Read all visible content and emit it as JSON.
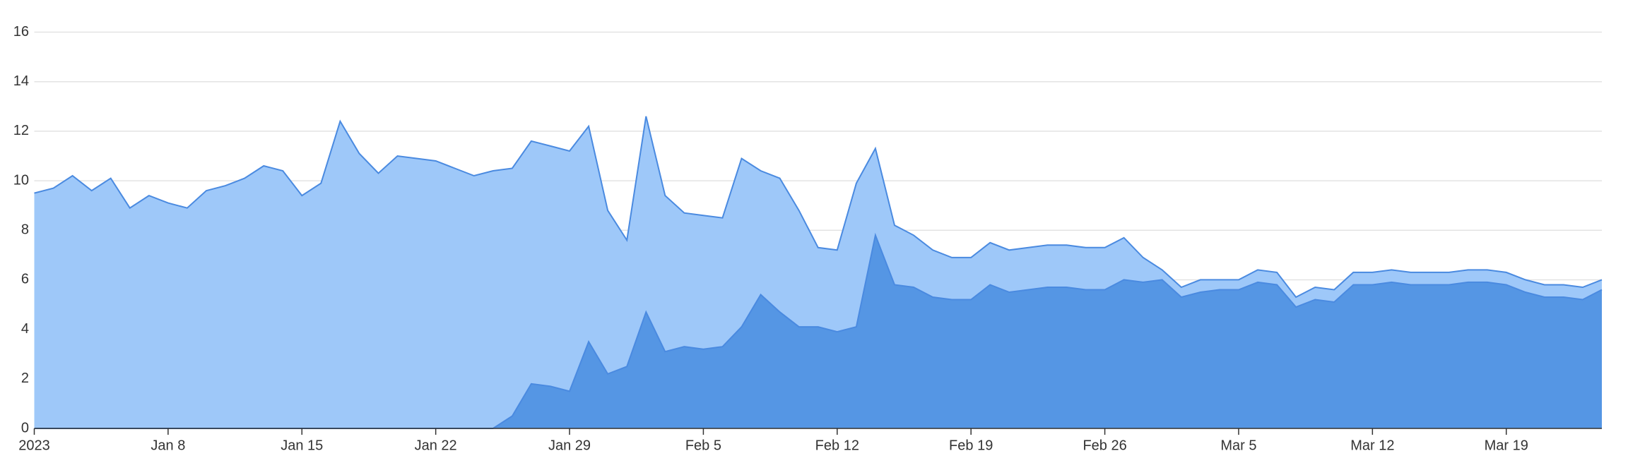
{
  "chart_data": {
    "type": "area",
    "x": [
      "2023-01-01",
      "2023-01-02",
      "2023-01-03",
      "2023-01-04",
      "2023-01-05",
      "2023-01-06",
      "2023-01-07",
      "2023-01-08",
      "2023-01-09",
      "2023-01-10",
      "2023-01-11",
      "2023-01-12",
      "2023-01-13",
      "2023-01-14",
      "2023-01-15",
      "2023-01-16",
      "2023-01-17",
      "2023-01-18",
      "2023-01-19",
      "2023-01-20",
      "2023-01-21",
      "2023-01-22",
      "2023-01-23",
      "2023-01-24",
      "2023-01-25",
      "2023-01-26",
      "2023-01-27",
      "2023-01-28",
      "2023-01-29",
      "2023-01-30",
      "2023-01-31",
      "2023-02-01",
      "2023-02-02",
      "2023-02-03",
      "2023-02-04",
      "2023-02-05",
      "2023-02-06",
      "2023-02-07",
      "2023-02-08",
      "2023-02-09",
      "2023-02-10",
      "2023-02-11",
      "2023-02-12",
      "2023-02-13",
      "2023-02-14",
      "2023-02-15",
      "2023-02-16",
      "2023-02-17",
      "2023-02-18",
      "2023-02-19",
      "2023-02-20",
      "2023-02-21",
      "2023-02-22",
      "2023-02-23",
      "2023-02-24",
      "2023-02-25",
      "2023-02-26",
      "2023-02-27",
      "2023-02-28",
      "2023-03-01",
      "2023-03-02",
      "2023-03-03",
      "2023-03-04",
      "2023-03-05",
      "2023-03-06",
      "2023-03-07",
      "2023-03-08",
      "2023-03-09",
      "2023-03-10",
      "2023-03-11",
      "2023-03-12",
      "2023-03-13",
      "2023-03-14",
      "2023-03-15",
      "2023-03-16",
      "2023-03-17",
      "2023-03-18",
      "2023-03-19",
      "2023-03-20",
      "2023-03-21",
      "2023-03-22",
      "2023-03-23",
      "2023-03-24"
    ],
    "series": [
      {
        "color": "#9ec8f9",
        "values": [
          9.5,
          9.7,
          10.2,
          9.6,
          10.1,
          8.9,
          9.4,
          9.1,
          8.9,
          9.6,
          9.8,
          10.1,
          10.6,
          10.4,
          9.4,
          9.9,
          12.4,
          11.1,
          10.3,
          11.0,
          10.9,
          10.8,
          10.5,
          10.2,
          10.4,
          10.5,
          11.6,
          11.4,
          11.2,
          12.2,
          8.8,
          7.6,
          12.6,
          9.4,
          8.7,
          8.6,
          8.5,
          10.9,
          10.4,
          10.1,
          8.8,
          7.3,
          7.2,
          9.9,
          11.3,
          8.2,
          7.8,
          7.2,
          6.9,
          6.9,
          7.5,
          7.2,
          7.3,
          7.4,
          7.4,
          7.3,
          7.3,
          7.7,
          6.9,
          6.4,
          5.7,
          6.0,
          6.0,
          6.0,
          6.4,
          6.3,
          5.3,
          5.7,
          5.6,
          6.3,
          6.3,
          6.4,
          6.3,
          6.3,
          6.3,
          6.4,
          6.4,
          6.3,
          6.0,
          5.8,
          5.8,
          5.7,
          6.0
        ]
      },
      {
        "color": "#5596e4",
        "values": [
          0,
          0,
          0,
          0,
          0,
          0,
          0,
          0,
          0,
          0,
          0,
          0,
          0,
          0,
          0,
          0,
          0,
          0,
          0,
          0,
          0,
          0,
          0,
          0,
          0,
          0.5,
          1.8,
          1.7,
          1.5,
          3.5,
          2.2,
          2.5,
          4.7,
          3.1,
          3.3,
          3.2,
          3.3,
          4.1,
          5.4,
          4.7,
          4.1,
          4.1,
          3.9,
          4.1,
          7.8,
          5.8,
          5.7,
          5.3,
          5.2,
          5.2,
          5.8,
          5.5,
          5.6,
          5.7,
          5.7,
          5.6,
          5.6,
          6.0,
          5.9,
          6.0,
          5.3,
          5.5,
          5.6,
          5.6,
          5.9,
          5.8,
          4.9,
          5.2,
          5.1,
          5.8,
          5.8,
          5.9,
          5.8,
          5.8,
          5.8,
          5.9,
          5.9,
          5.8,
          5.5,
          5.3,
          5.3,
          5.2,
          5.6
        ]
      }
    ],
    "line_color": "#4a8ae0",
    "xlim": [
      "2023-01-01",
      "2023-03-24"
    ],
    "xticks": [
      {
        "value": "2023-01-01",
        "label": "2023"
      },
      {
        "value": "2023-01-08",
        "label": "Jan 8"
      },
      {
        "value": "2023-01-15",
        "label": "Jan 15"
      },
      {
        "value": "2023-01-22",
        "label": "Jan 22"
      },
      {
        "value": "2023-01-29",
        "label": "Jan 29"
      },
      {
        "value": "2023-02-05",
        "label": "Feb 5"
      },
      {
        "value": "2023-02-12",
        "label": "Feb 12"
      },
      {
        "value": "2023-02-19",
        "label": "Feb 19"
      },
      {
        "value": "2023-02-26",
        "label": "Feb 26"
      },
      {
        "value": "2023-03-05",
        "label": "Mar 5"
      },
      {
        "value": "2023-03-12",
        "label": "Mar 12"
      },
      {
        "value": "2023-03-19",
        "label": "Mar 19"
      }
    ],
    "ylim": [
      0,
      16
    ],
    "yticks": [
      0,
      2,
      4,
      6,
      8,
      10,
      12,
      14,
      16
    ],
    "grid": true
  }
}
